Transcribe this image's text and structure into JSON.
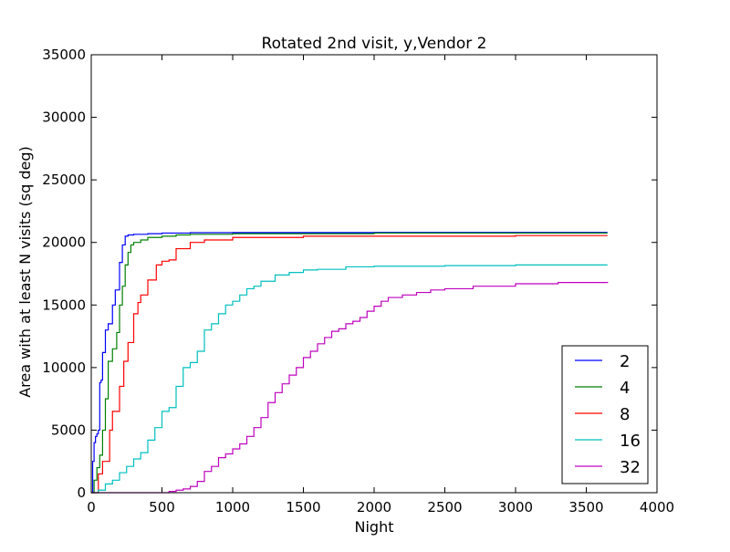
{
  "chart_data": {
    "type": "line",
    "title": "Rotated 2nd visit, y,Vendor 2",
    "xlabel": "Night",
    "ylabel": "Area with at least N visits (sq deg)",
    "xlim": [
      0,
      4000
    ],
    "ylim": [
      0,
      35000
    ],
    "xticks": [
      0,
      500,
      1000,
      1500,
      2000,
      2500,
      3000,
      3500,
      4000
    ],
    "yticks": [
      0,
      5000,
      10000,
      15000,
      20000,
      25000,
      30000,
      35000
    ],
    "xtick_labels": [
      "0",
      "500",
      "1000",
      "1500",
      "2000",
      "2500",
      "3000",
      "3500",
      "4000"
    ],
    "ytick_labels": [
      "0",
      "5000",
      "10000",
      "15000",
      "20000",
      "25000",
      "30000",
      "35000"
    ],
    "grid": false,
    "legend_position": "lower-right",
    "series": [
      {
        "name": "2",
        "color": "#0000ff",
        "x": [
          0,
          10,
          20,
          30,
          40,
          50,
          60,
          70,
          80,
          100,
          120,
          150,
          170,
          200,
          220,
          240,
          260,
          300,
          400,
          500,
          700,
          1000,
          2000,
          3000,
          3650
        ],
        "y": [
          0,
          2500,
          4000,
          4500,
          4700,
          5000,
          8800,
          9000,
          11200,
          13000,
          13500,
          15000,
          16200,
          18400,
          19800,
          20500,
          20600,
          20650,
          20700,
          20750,
          20780,
          20790,
          20800,
          20800,
          20800
        ]
      },
      {
        "name": "4",
        "color": "#008000",
        "x": [
          0,
          20,
          40,
          60,
          80,
          100,
          120,
          150,
          180,
          200,
          220,
          240,
          260,
          280,
          300,
          350,
          400,
          500,
          600,
          700,
          1000,
          2000,
          3000,
          3650
        ],
        "y": [
          0,
          1000,
          2000,
          3000,
          5000,
          7500,
          10500,
          11500,
          12800,
          15000,
          16500,
          18200,
          19200,
          19800,
          20000,
          20200,
          20400,
          20500,
          20600,
          20650,
          20700,
          20750,
          20750,
          20750
        ]
      },
      {
        "name": "8",
        "color": "#ff0000",
        "x": [
          0,
          50,
          80,
          100,
          130,
          150,
          200,
          230,
          260,
          300,
          330,
          350,
          400,
          460,
          500,
          550,
          600,
          700,
          800,
          1000,
          1500,
          2000,
          3000,
          3650
        ],
        "y": [
          0,
          1500,
          2500,
          2500,
          5000,
          6500,
          8500,
          10500,
          12000,
          14300,
          15200,
          15800,
          17000,
          18200,
          18500,
          18600,
          19500,
          20000,
          20200,
          20400,
          20500,
          20500,
          20550,
          20550
        ]
      },
      {
        "name": "16",
        "color": "#00bfbf",
        "x": [
          0,
          50,
          100,
          150,
          200,
          250,
          300,
          350,
          400,
          450,
          500,
          550,
          600,
          650,
          700,
          750,
          800,
          850,
          900,
          950,
          1000,
          1050,
          1100,
          1150,
          1200,
          1300,
          1400,
          1500,
          1600,
          1800,
          2000,
          2500,
          3000,
          3650
        ],
        "y": [
          0,
          200,
          700,
          1000,
          1600,
          2100,
          2700,
          3200,
          4200,
          5200,
          6500,
          6800,
          8500,
          10000,
          10400,
          11300,
          13000,
          13500,
          14300,
          15000,
          15300,
          15800,
          16300,
          16500,
          16900,
          17400,
          17600,
          17800,
          17850,
          18050,
          18100,
          18150,
          18200,
          18200
        ]
      },
      {
        "name": "32",
        "color": "#bf00bf",
        "x": [
          0,
          300,
          450,
          500,
          550,
          600,
          650,
          700,
          750,
          800,
          850,
          900,
          950,
          1000,
          1050,
          1100,
          1150,
          1200,
          1250,
          1300,
          1350,
          1400,
          1450,
          1500,
          1550,
          1600,
          1650,
          1700,
          1750,
          1800,
          1850,
          1900,
          1950,
          2000,
          2050,
          2100,
          2200,
          2300,
          2400,
          2500,
          2700,
          3000,
          3300,
          3650
        ],
        "y": [
          0,
          0,
          0,
          0,
          100,
          200,
          300,
          500,
          900,
          1700,
          2100,
          2800,
          3100,
          3500,
          3900,
          4500,
          5200,
          6000,
          7200,
          8000,
          8700,
          9400,
          10000,
          10800,
          11300,
          11900,
          12400,
          12900,
          13100,
          13500,
          13700,
          14000,
          14500,
          14900,
          15300,
          15600,
          15800,
          16000,
          16200,
          16300,
          16500,
          16700,
          16800,
          16850
        ]
      }
    ]
  }
}
